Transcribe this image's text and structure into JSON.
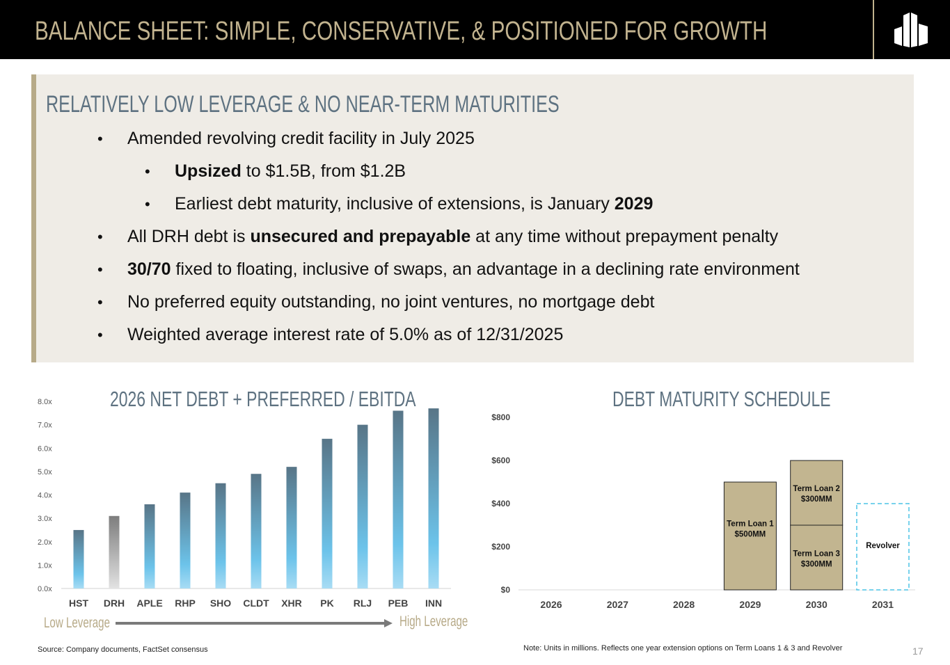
{
  "header": {
    "title": "BALANCE SHEET:  SIMPLE, CONSERVATIVE, & POSITIONED FOR GROWTH",
    "logo": "building-logo"
  },
  "panel": {
    "title": "RELATIVELY LOW LEVERAGE & NO NEAR-TERM MATURITIES",
    "bullets": [
      {
        "level": 1,
        "parts": [
          {
            "t": "Amended revolving credit facility in July 2025",
            "b": false
          }
        ]
      },
      {
        "level": 2,
        "parts": [
          {
            "t": "Upsized",
            "b": true
          },
          {
            "t": " to $1.5B, from $1.2B",
            "b": false
          }
        ]
      },
      {
        "level": 2,
        "parts": [
          {
            "t": "Earliest debt maturity, inclusive of extensions, is January ",
            "b": false
          },
          {
            "t": "2029",
            "b": true
          }
        ]
      },
      {
        "level": 1,
        "parts": [
          {
            "t": "All DRH debt is ",
            "b": false
          },
          {
            "t": "unsecured and prepayable",
            "b": true
          },
          {
            "t": " at any time without prepayment penalty",
            "b": false
          }
        ]
      },
      {
        "level": 1,
        "parts": [
          {
            "t": "30/70",
            "b": true
          },
          {
            "t": " fixed to floating, inclusive of swaps, an advantage in a declining rate environment",
            "b": false
          }
        ]
      },
      {
        "level": 1,
        "parts": [
          {
            "t": "No preferred equity outstanding, no joint ventures, no mortgage debt",
            "b": false
          }
        ]
      },
      {
        "level": 1,
        "parts": [
          {
            "t": "Weighted average interest rate of 5.0% as of 12/31/2025",
            "b": false
          }
        ]
      }
    ],
    "bullet_char": "•"
  },
  "chart_data": [
    {
      "type": "bar",
      "title": "2026 NET DEBT + PREFERRED / EBITDA",
      "categories": [
        "HST",
        "DRH",
        "APLE",
        "RHP",
        "SHO",
        "CLDT",
        "XHR",
        "PK",
        "RLJ",
        "PEB",
        "INN"
      ],
      "values": [
        2.5,
        3.1,
        3.6,
        4.1,
        4.5,
        4.9,
        5.2,
        6.4,
        7.0,
        7.6,
        7.7
      ],
      "highlight": "DRH",
      "ylim": [
        0,
        8
      ],
      "yticks": [
        "0.0x",
        "1.0x",
        "2.0x",
        "3.0x",
        "4.0x",
        "5.0x",
        "6.0x",
        "7.0x",
        "8.0x"
      ],
      "colors": {
        "bar_top": "#587587",
        "bar_bottom": "#a8dcf4",
        "highlight_top": "#7d7d7d",
        "highlight_bottom": "#e2e2e2"
      },
      "annotations": {
        "low": "Low Leverage",
        "high": "High Leverage"
      }
    },
    {
      "type": "bar",
      "title": "DEBT MATURITY SCHEDULE",
      "categories": [
        "2026",
        "2027",
        "2028",
        "2029",
        "2030",
        "2031"
      ],
      "ylim": [
        0,
        800
      ],
      "yticks": [
        "$0",
        "$200",
        "$400",
        "$600",
        "$800"
      ],
      "segments": [
        {
          "category": "2029",
          "label": "Term Loan 1",
          "amount": "$500MM",
          "value": 500,
          "style": "solid"
        },
        {
          "category": "2030",
          "label": "Term Loan 3",
          "amount": "$300MM",
          "value": 300,
          "style": "solid"
        },
        {
          "category": "2030",
          "label": "Term Loan 2",
          "amount": "$300MM",
          "value": 300,
          "style": "solid"
        },
        {
          "category": "2031",
          "label": "Revolver",
          "amount": "",
          "value": 400,
          "style": "dashed"
        }
      ],
      "colors": {
        "solid": "#c2b590",
        "dashed": "#4cc3e6"
      }
    }
  ],
  "footer": {
    "source": "Source: Company documents, FactSet consensus",
    "note": "Note:  Units in millions.  Reflects one year extension options on Term Loans 1 & 3 and Revolver",
    "page": "17"
  }
}
